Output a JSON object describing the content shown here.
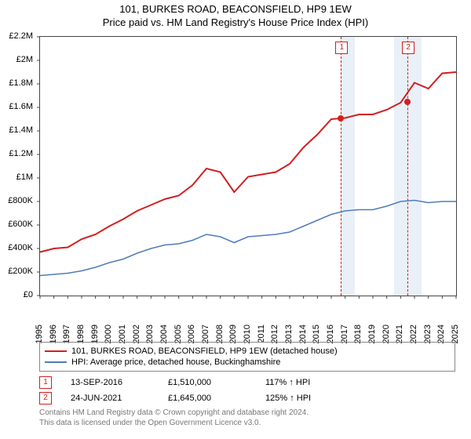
{
  "title_line1": "101, BURKES ROAD, BEACONSFIELD, HP9 1EW",
  "title_line2": "Price paid vs. HM Land Registry's House Price Index (HPI)",
  "chart": {
    "type": "line",
    "x_years": [
      1995,
      1996,
      1997,
      1998,
      1999,
      2000,
      2001,
      2002,
      2003,
      2004,
      2005,
      2006,
      2007,
      2008,
      2009,
      2010,
      2011,
      2012,
      2013,
      2014,
      2015,
      2016,
      2017,
      2018,
      2019,
      2020,
      2021,
      2022,
      2023,
      2024,
      2025
    ],
    "xlim": [
      1995,
      2025
    ],
    "ylim": [
      0,
      2200000
    ],
    "ytick_step": 200000,
    "ytick_labels": [
      "£0",
      "£200K",
      "£400K",
      "£600K",
      "£800K",
      "£1M",
      "£1.2M",
      "£1.4M",
      "£1.6M",
      "£1.8M",
      "£2M",
      "£2.2M"
    ],
    "series": [
      {
        "name": "101, BURKES ROAD, BEACONSFIELD, HP9 1EW (detached house)",
        "color": "#d12020",
        "line_width": 2,
        "values": [
          370000,
          400000,
          410000,
          480000,
          520000,
          590000,
          650000,
          720000,
          770000,
          820000,
          850000,
          940000,
          1080000,
          1050000,
          880000,
          1010000,
          1030000,
          1050000,
          1120000,
          1260000,
          1370000,
          1500000,
          1510000,
          1540000,
          1540000,
          1580000,
          1640000,
          1810000,
          1760000,
          1890000,
          1900000
        ]
      },
      {
        "name": "HPI: Average price, detached house, Buckinghamshire",
        "color": "#4f7cbd",
        "line_width": 1.5,
        "values": [
          170000,
          180000,
          190000,
          210000,
          240000,
          280000,
          310000,
          360000,
          400000,
          430000,
          440000,
          470000,
          520000,
          500000,
          450000,
          500000,
          510000,
          520000,
          540000,
          590000,
          640000,
          690000,
          720000,
          730000,
          730000,
          760000,
          800000,
          810000,
          790000,
          800000,
          800000
        ]
      }
    ],
    "shaded_ranges": [
      {
        "x0": 2016.7,
        "x1": 2017.7,
        "color": "#eaf0f8"
      },
      {
        "x0": 2020.5,
        "x1": 2022.5,
        "color": "#eaf0f8"
      }
    ],
    "markers": [
      {
        "label": "1",
        "x": 2016.7,
        "y": 1510000,
        "date": "13-SEP-2016",
        "price": "£1,510,000",
        "pct": "117% ↑ HPI"
      },
      {
        "label": "2",
        "x": 2021.5,
        "y": 1645000,
        "date": "24-JUN-2021",
        "price": "£1,645,000",
        "pct": "125% ↑ HPI"
      }
    ],
    "background_color": "#ffffff",
    "axis_color": "#444444",
    "tick_fontsize": 11,
    "title_fontsize": 13
  },
  "footer_line1": "Contains HM Land Registry data © Crown copyright and database right 2024.",
  "footer_line2": "This data is licensed under the Open Government Licence v3.0."
}
